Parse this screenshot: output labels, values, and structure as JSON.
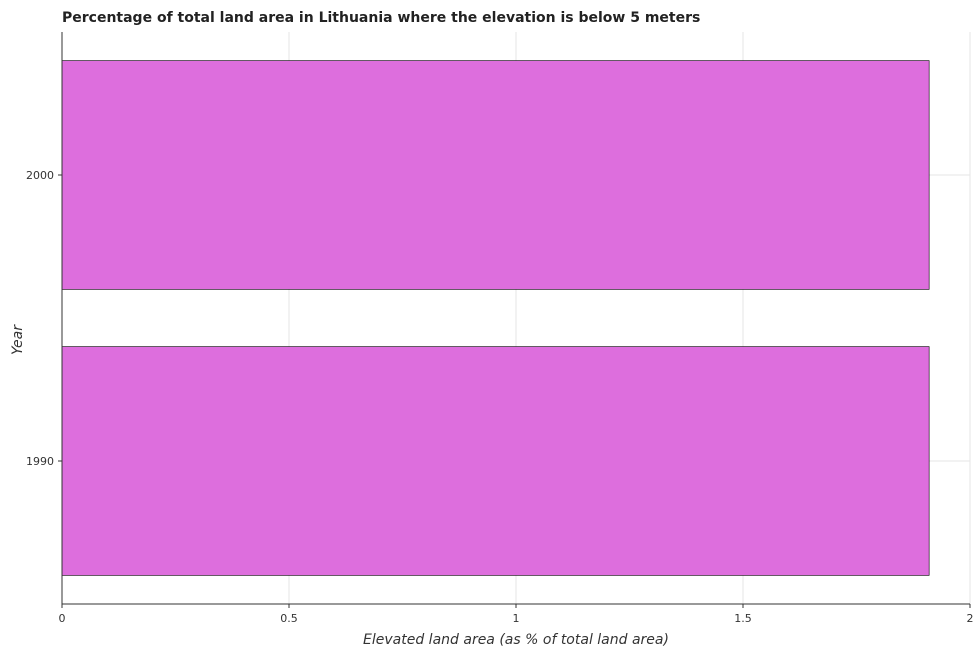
{
  "chart_data": {
    "type": "bar",
    "orientation": "horizontal",
    "title": "Percentage of total land area in Lithuania where the elevation is below 5 meters",
    "xlabel": "Elevated land area (as % of total land area)",
    "ylabel": "Year",
    "categories": [
      "1990",
      "2000"
    ],
    "values": [
      1.91,
      1.91
    ],
    "xlim": [
      0,
      2
    ],
    "xticks": [
      "0",
      "0.5",
      "1",
      "1.5",
      "2"
    ],
    "grid": true,
    "bar_color": "#dd6edd",
    "bar_edge_color": "#000000"
  }
}
